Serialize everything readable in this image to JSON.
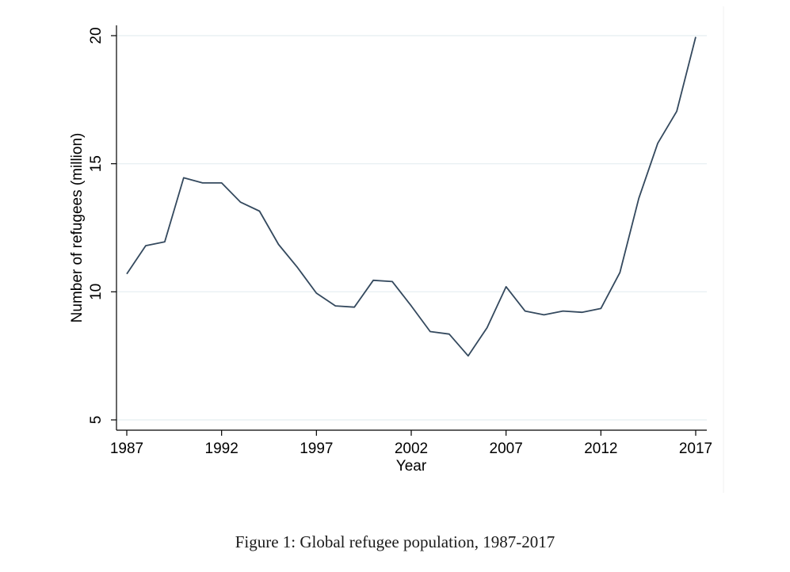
{
  "chart_data": {
    "type": "line",
    "title": "",
    "xlabel": "Year",
    "ylabel": "Number of refugees (million)",
    "xlim": [
      1987,
      2017
    ],
    "ylim": [
      5,
      20
    ],
    "xticks": [
      1987,
      1992,
      1997,
      2002,
      2007,
      2012,
      2017
    ],
    "yticks": [
      5,
      10,
      15,
      20
    ],
    "grid": true,
    "series": [
      {
        "name": "Global refugee population",
        "color": "#34495e",
        "x": [
          1987,
          1988,
          1989,
          1990,
          1991,
          1992,
          1993,
          1994,
          1995,
          1996,
          1997,
          1998,
          1999,
          2000,
          2001,
          2002,
          2003,
          2004,
          2005,
          2006,
          2007,
          2008,
          2009,
          2010,
          2011,
          2012,
          2013,
          2014,
          2015,
          2016,
          2017
        ],
        "values": [
          10.7,
          11.8,
          11.95,
          14.45,
          14.25,
          14.25,
          13.5,
          13.15,
          11.85,
          10.95,
          9.95,
          9.45,
          9.4,
          10.45,
          10.4,
          9.45,
          8.45,
          8.35,
          7.5,
          8.6,
          10.2,
          9.25,
          9.1,
          9.25,
          9.2,
          9.35,
          10.75,
          13.65,
          15.8,
          17.05,
          19.95
        ]
      }
    ]
  },
  "figure": {
    "caption": "Figure 1:  Global refugee population, 1987-2017"
  },
  "colors": {
    "line": "#34495e",
    "grid": "#e4eef1",
    "axis": "#000000"
  }
}
